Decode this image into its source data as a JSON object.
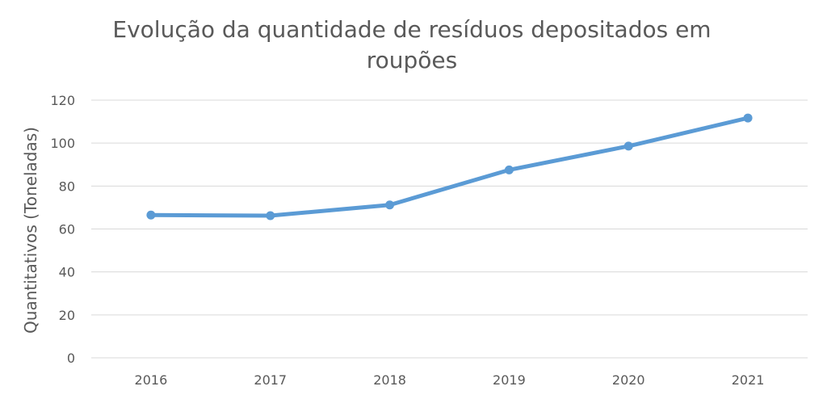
{
  "chart_data": {
    "type": "line",
    "title_lines": [
      "Evolução da quantidade de resíduos depositados em",
      "roupões"
    ],
    "xlabel": "",
    "ylabel": "Quantitativos (Toneladas)",
    "categories": [
      "2016",
      "2017",
      "2018",
      "2019",
      "2020",
      "2021"
    ],
    "series": [
      {
        "values": [
          66.5,
          66.2,
          71.2,
          87.5,
          98.6,
          111.7
        ],
        "color": "#5b9bd5"
      }
    ],
    "ylim": [
      0,
      120
    ],
    "yticks": [
      0,
      20,
      40,
      60,
      80,
      100,
      120
    ],
    "grid": true,
    "legend": "none",
    "markers": true
  }
}
